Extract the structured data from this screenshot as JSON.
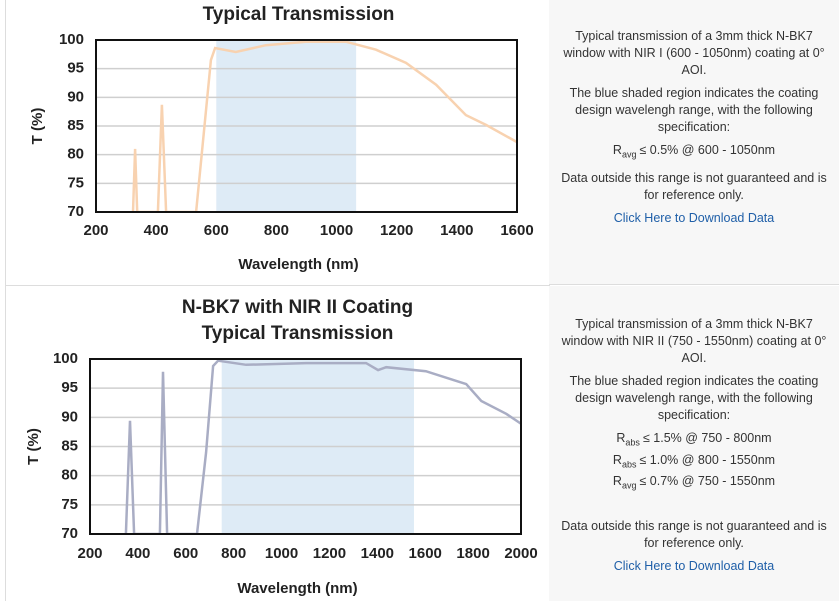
{
  "chart_data": [
    {
      "type": "line",
      "subtitle": "Typical Transmission",
      "xlabel": "Wavelength (nm)",
      "ylabel": "T (%)",
      "x": [
        323,
        330,
        337,
        406,
        419,
        433,
        533,
        582,
        596,
        665,
        765,
        898,
        1031,
        1131,
        1231,
        1331,
        1430,
        1497,
        1600
      ],
      "values": [
        70,
        81,
        70,
        70,
        88.7,
        70,
        70,
        96.5,
        98.6,
        97.9,
        99.1,
        99.7,
        99.7,
        98.3,
        96,
        92.2,
        86.9,
        85.2,
        82.2
      ],
      "color": "#f8d2b0",
      "shade": [
        600,
        1065
      ],
      "shade_color": "#deebf6",
      "xlim": [
        200,
        1600
      ],
      "xticks": [
        200,
        400,
        600,
        800,
        1000,
        1200,
        1400,
        1600
      ],
      "ylim": [
        70,
        100
      ],
      "yticks": [
        70,
        75,
        80,
        85,
        90,
        95,
        100
      ],
      "grid": true
    },
    {
      "type": "line",
      "title": "N-BK7 with NIR II Coating",
      "subtitle": "Typical Transmission",
      "xlabel": "Wavelength (nm)",
      "ylabel": "T (%)",
      "x": [
        350,
        367,
        384,
        492,
        505,
        522,
        647,
        685,
        714,
        735,
        852,
        1102,
        1353,
        1403,
        1437,
        1603,
        1771,
        1834,
        1938,
        2000
      ],
      "values": [
        70,
        89.4,
        70,
        70,
        97.8,
        70,
        70,
        84,
        98.8,
        99.7,
        99,
        99.3,
        99.3,
        98.1,
        98.6,
        97.9,
        95.7,
        92.8,
        90.6,
        88.9
      ],
      "color": "#a9adc4",
      "shade": [
        750,
        1553
      ],
      "shade_color": "#deebf6",
      "xlim": [
        200,
        2000
      ],
      "xticks": [
        200,
        400,
        600,
        800,
        1000,
        1200,
        1400,
        1600,
        1800,
        2000
      ],
      "ylim": [
        70,
        100
      ],
      "yticks": [
        70,
        75,
        80,
        85,
        90,
        95,
        100
      ],
      "grid": true
    }
  ],
  "panels": [
    {
      "description": "Typical transmission of a 3mm thick N-BK7 window with NIR I (600 - 1050nm) coating at 0° AOI.",
      "shading_note": "The blue shaded region indicates the coating design wavelengh range, with the following specification:",
      "specs": [
        {
          "symbol": "R",
          "sub": "avg",
          "text": "≤ 0.5% @ 600 - 1050nm"
        }
      ],
      "disclaimer": "Data outside this range is not guaranteed and is for reference only.",
      "link": "Click Here to Download Data"
    },
    {
      "description": "Typical transmission of a 3mm thick N-BK7 window with NIR II (750 - 1550nm) coating at 0° AOI.",
      "shading_note": "The blue shaded region indicates the coating design wavelengh range, with the following specification:",
      "specs": [
        {
          "symbol": "R",
          "sub": "abs",
          "text": "≤ 1.5% @ 750 - 800nm"
        },
        {
          "symbol": "R",
          "sub": "abs",
          "text": "≤ 1.0% @ 800 - 1550nm"
        },
        {
          "symbol": "R",
          "sub": "avg",
          "text": "≤ 0.7% @ 750 - 1550nm"
        }
      ],
      "disclaimer": "Data outside this range is not guaranteed and is for reference only.",
      "link": "Click Here to Download Data"
    }
  ]
}
